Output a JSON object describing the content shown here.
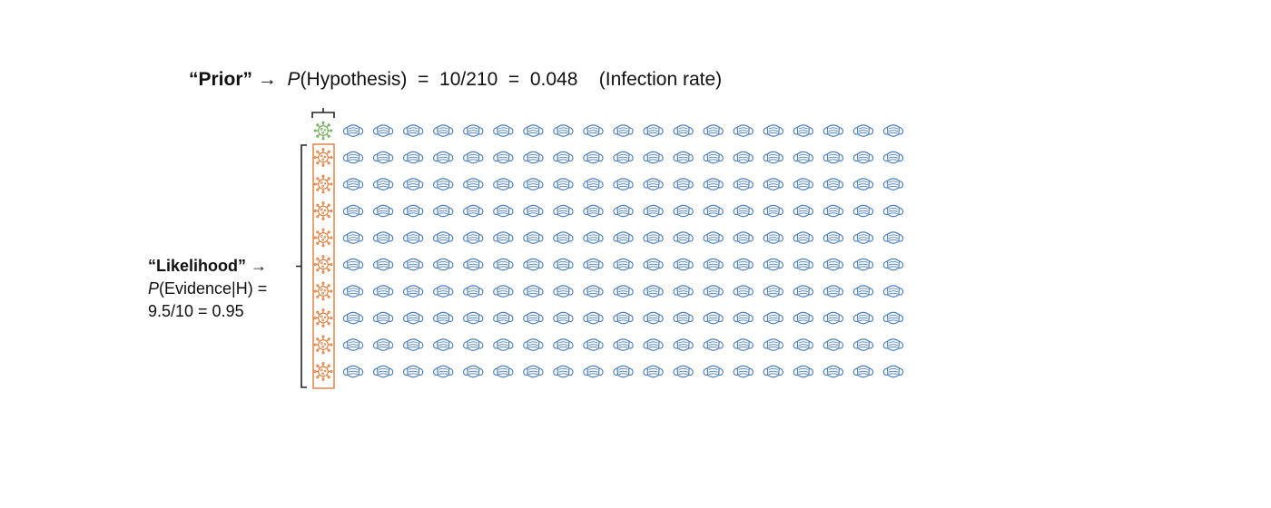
{
  "prior": {
    "label": "“Prior”",
    "arrow": "→",
    "p": "P",
    "expression": "(Hypothesis)  =  10/210  =  0.048    (Infection rate)"
  },
  "likelihood": {
    "label": "“Likelihood”",
    "arrow": "→",
    "p": "P",
    "expression": "(Evidence|H) =",
    "value": "9.5/10 = 0.95"
  },
  "grid": {
    "rows": 10,
    "columns": 20,
    "top_row_virus_count": 1,
    "bracketed_virus_count": 9
  },
  "icons": {
    "top_virus": "virus-icon",
    "bracketed_virus": "virus-icon",
    "person": "face-mask-icon"
  },
  "colors": {
    "top_virus": "#6aa84f",
    "bracketed_virus": "#e07b39",
    "mask": "#4a7ebb",
    "highlight_box": "#e07b39",
    "bracket": "#222222"
  }
}
